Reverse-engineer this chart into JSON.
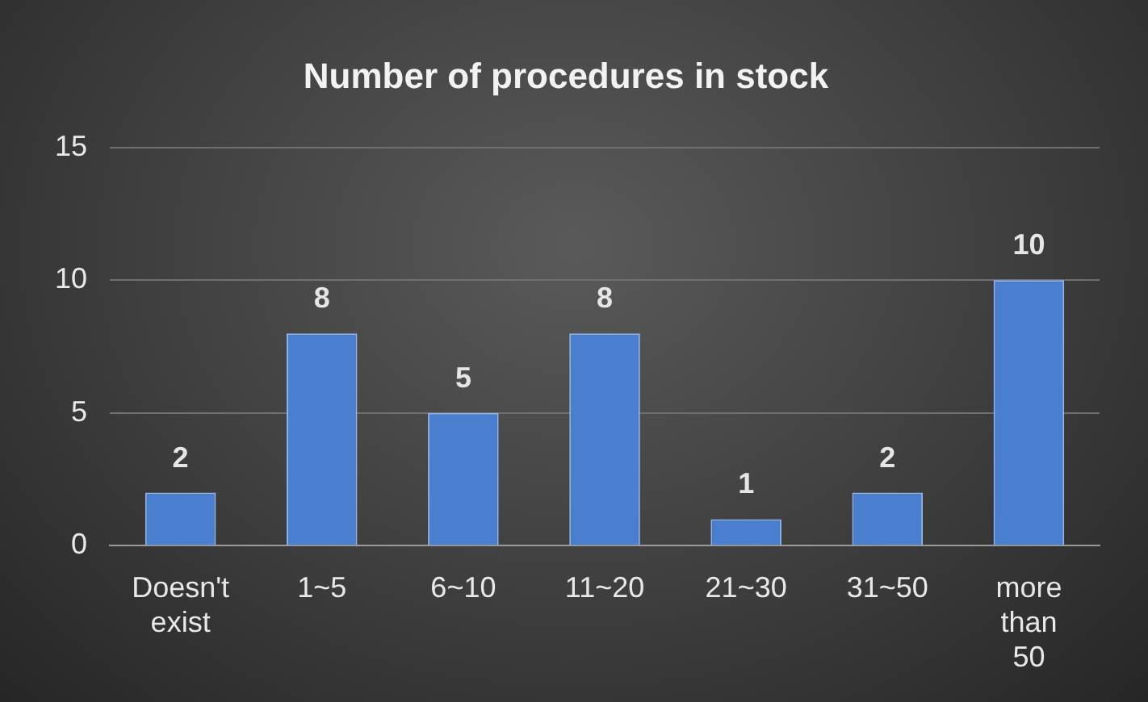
{
  "chart_data": {
    "type": "bar",
    "title": "Number of procedures in stock",
    "categories": [
      "Doesn't exist",
      "1~5",
      "6~10",
      "11~20",
      "21~30",
      "31~50",
      "more than 50"
    ],
    "values": [
      2,
      8,
      5,
      8,
      1,
      2,
      10
    ],
    "color": "#4a7fd0",
    "ylim": [
      0,
      15
    ],
    "yticks": [
      0,
      5,
      10,
      15
    ],
    "grid": "y",
    "data_labels": true
  }
}
